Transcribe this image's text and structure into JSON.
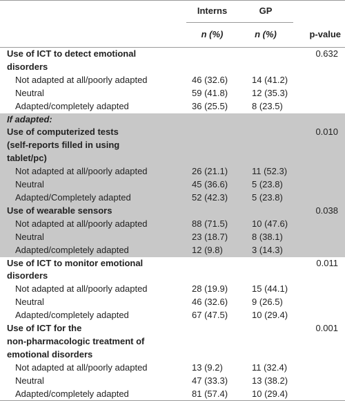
{
  "header": {
    "col_interns": "Interns",
    "col_gp": "GP",
    "n_interns": "n (%)",
    "n_gp": "n (%)",
    "p_value": "p-value"
  },
  "blocks": [
    {
      "shaded": false,
      "items": [
        {
          "title": [
            "Use of ICT to detect emotional",
            "disorders"
          ],
          "p": "0.632"
        },
        {
          "label": "Not adapted at all/poorly adapted",
          "interns": "46 (32.6)",
          "gp": "14 (41.2)"
        },
        {
          "label": "Neutral",
          "interns": "59 (41.8)",
          "gp": "12 (35.3)"
        },
        {
          "label": "Adapted/completely adapted",
          "interns": "36 (25.5)",
          "gp": "8 (23.5)"
        }
      ]
    },
    {
      "shaded": true,
      "items": [
        {
          "note": "If adapted:"
        },
        {
          "title": [
            "Use of computerized tests",
            "(self-reports filled in using",
            "tablet/pc)"
          ],
          "p": "0.010"
        },
        {
          "label": "Not adapted at all/poorly adapted",
          "interns": "26 (21.1)",
          "gp": "11 (52.3)"
        },
        {
          "label": "Neutral",
          "interns": "45 (36.6)",
          "gp": "5 (23.8)"
        },
        {
          "label": "Adapted/Completely adapted",
          "interns": "52 (42.3)",
          "gp": "5 (23.8)"
        },
        {
          "title": [
            "Use of wearable sensors"
          ],
          "p": "0.038"
        },
        {
          "label": "Not adapted at all/poorly adapted",
          "interns": "88 (71.5)",
          "gp": "10 (47.6)"
        },
        {
          "label": "Neutral",
          "interns": "23 (18.7)",
          "gp": "8 (38.1)"
        },
        {
          "label": "Adapted/completely adapted",
          "interns": "12 (9.8)",
          "gp": "3 (14.3)"
        }
      ]
    },
    {
      "shaded": false,
      "items": [
        {
          "title": [
            "Use of ICT to monitor emotional",
            "disorders"
          ],
          "p": "0.011"
        },
        {
          "label": "Not adapted at all/poorly adapted",
          "interns": "28 (19.9)",
          "gp": "15 (44.1)"
        },
        {
          "label": "Neutral",
          "interns": "46 (32.6)",
          "gp": "9 (26.5)"
        },
        {
          "label": "Adapted/completely adapted",
          "interns": "67 (47.5)",
          "gp": "10 (29.4)"
        }
      ]
    },
    {
      "shaded": false,
      "items": [
        {
          "title": [
            "Use of ICT for the",
            "non-pharmacologic treatment of",
            "emotional disorders"
          ],
          "p": "0.001"
        },
        {
          "label": "Not adapted at all/poorly adapted",
          "interns": "13 (9.2)",
          "gp": "11 (32.4)"
        },
        {
          "label": "Neutral",
          "interns": "47 (33.3)",
          "gp": "13 (38.2)"
        },
        {
          "label": "Adapted/completely adapted",
          "interns": "81 (57.4)",
          "gp": "10 (29.4)"
        }
      ]
    }
  ]
}
